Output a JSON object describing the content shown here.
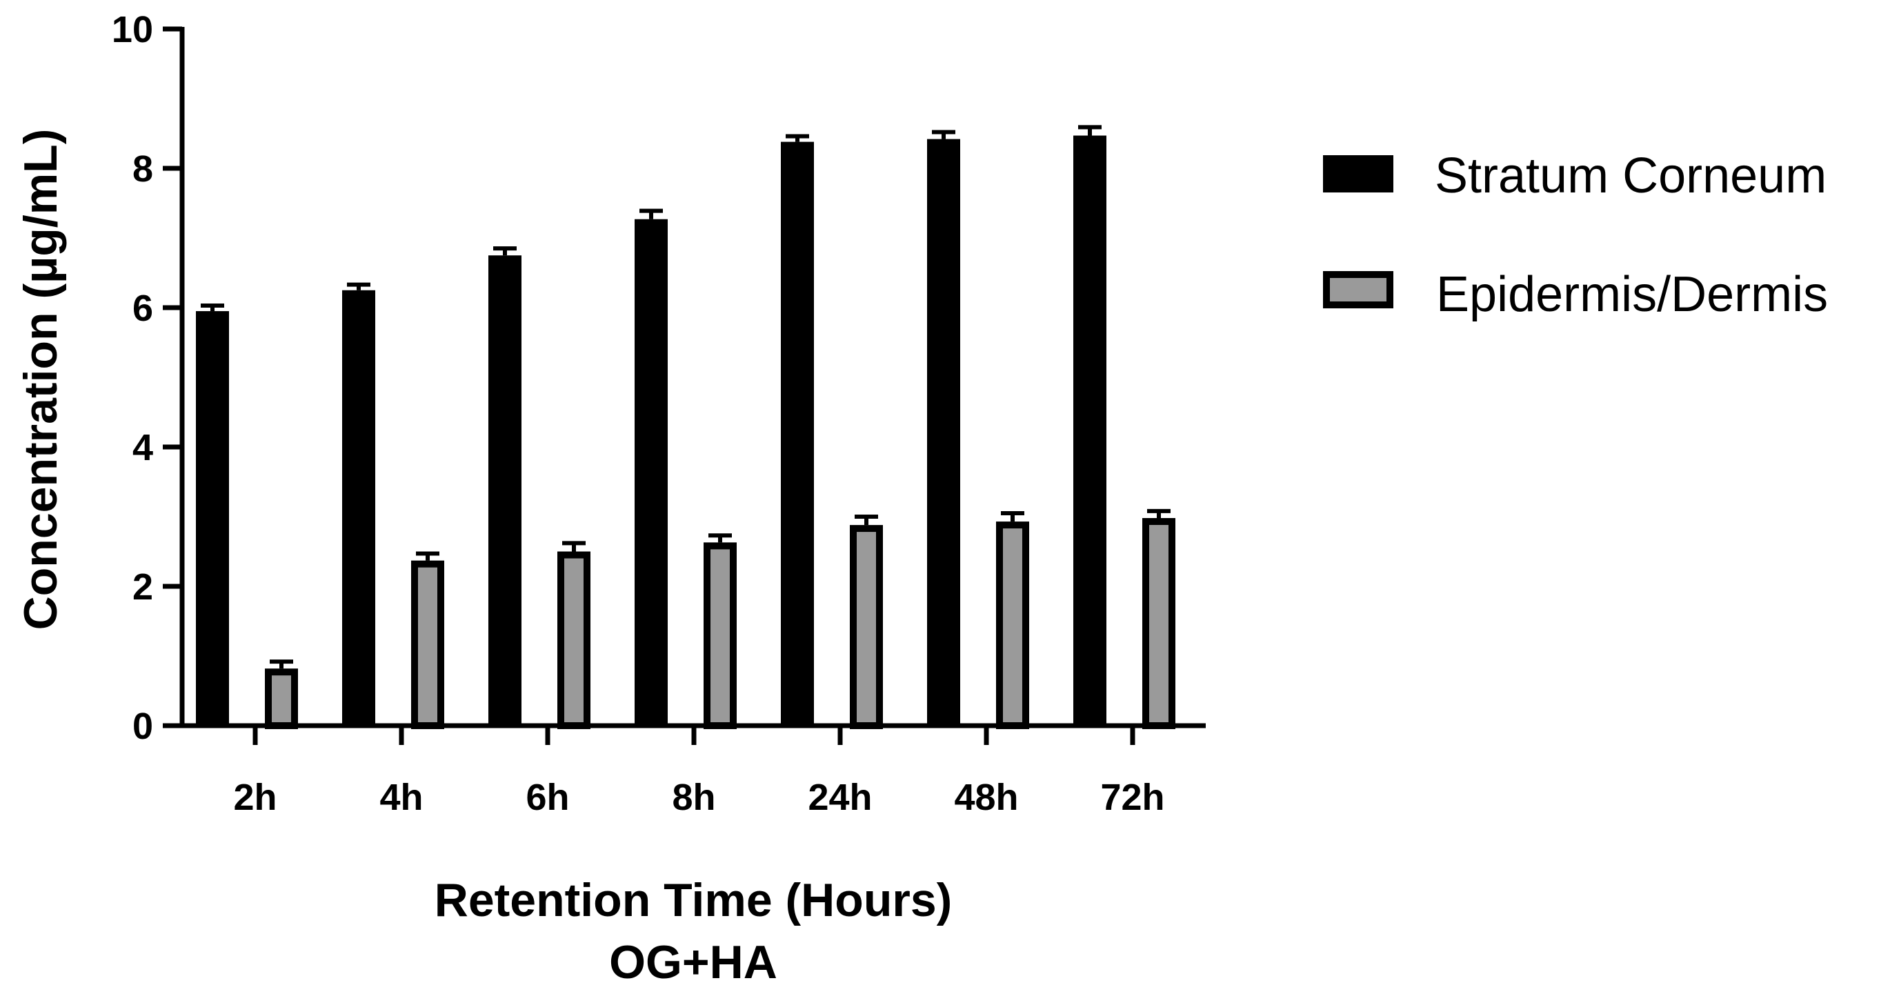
{
  "chart_data": {
    "type": "bar",
    "title": "",
    "xlabel": "Retention Time (Hours)",
    "xlabel_sub": "OG+HA",
    "ylabel": "Concentration (µg/mL)",
    "ylim": [
      0,
      10
    ],
    "yticks": [
      "0",
      "2",
      "4",
      "6",
      "8",
      "10"
    ],
    "categories": [
      "2h",
      "4h",
      "6h",
      "8h",
      "24h",
      "48h",
      "72h"
    ],
    "series": [
      {
        "name": "Stratum Corneum",
        "color": "#000000",
        "values": [
          5.95,
          6.25,
          6.75,
          7.27,
          8.38,
          8.42,
          8.47
        ],
        "errors": [
          0.08,
          0.08,
          0.1,
          0.12,
          0.08,
          0.1,
          0.12
        ]
      },
      {
        "name": "Epidermis/Dermis",
        "color": "#9a9a9a",
        "values": [
          0.82,
          2.37,
          2.5,
          2.63,
          2.88,
          2.93,
          2.98
        ],
        "errors": [
          0.1,
          0.1,
          0.12,
          0.1,
          0.12,
          0.12,
          0.1
        ]
      }
    ],
    "legend_position": "right",
    "grid": false
  }
}
